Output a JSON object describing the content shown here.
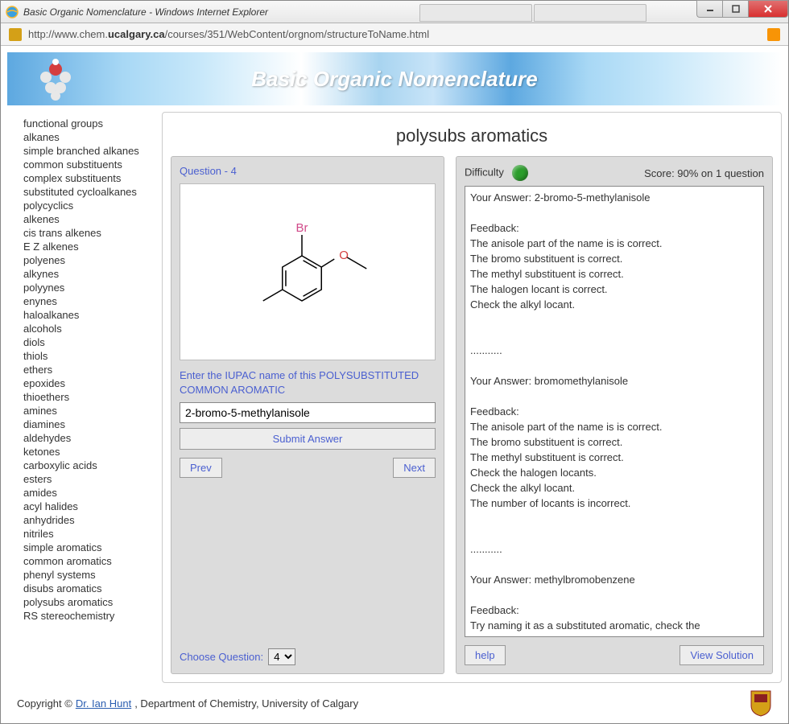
{
  "window": {
    "title": "Basic Organic Nomenclature - Windows Internet Explorer",
    "url_prefix": "http://www.chem.",
    "url_host": "ucalgary.ca",
    "url_path": "/courses/351/WebContent/orgnom/structureToName.html"
  },
  "banner": {
    "title": "Basic Organic Nomenclature"
  },
  "sidebar": {
    "items": [
      "functional groups",
      "alkanes",
      "simple branched alkanes",
      "common substituents",
      "complex substituents",
      "substituted cycloalkanes",
      "polycyclics",
      "alkenes",
      "cis trans alkenes",
      "E Z alkenes",
      "polyenes",
      "alkynes",
      "polyynes",
      "enynes",
      "haloalkanes",
      "alcohols",
      "diols",
      "thiols",
      "ethers",
      "epoxides",
      "thioethers",
      "amines",
      "diamines",
      "aldehydes",
      "ketones",
      "carboxylic acids",
      "esters",
      "amides",
      "acyl halides",
      "anhydrides",
      "nitriles",
      "simple aromatics",
      "common aromatics",
      "phenyl systems",
      "disubs aromatics",
      "polysubs aromatics",
      "RS stereochemistry"
    ]
  },
  "main": {
    "heading": "polysubs aromatics",
    "question_label": "Question - 4",
    "prompt": "Enter the IUPAC name of this POLYSUBSTITUTED COMMON AROMATIC",
    "answer_value": "2-bromo-5-methylanisole",
    "submit_label": "Submit Answer",
    "prev_label": "Prev",
    "next_label": "Next",
    "choose_label": "Choose Question:",
    "choose_value": "4",
    "difficulty_label": "Difficulty",
    "difficulty_color": "#2a9d2a",
    "score_text": "Score: 90% on 1 question",
    "help_label": "help",
    "view_solution_label": "View Solution",
    "feedback_text": "Your Answer: 2-bromo-5-methylanisole\n\nFeedback:\nThe anisole part of the name is is correct.\nThe bromo substituent is correct.\nThe methyl substituent is correct.\nThe halogen locant is correct.\nCheck the alkyl locant.\n\n\n...........\n\nYour Answer: bromomethylanisole\n\nFeedback:\nThe anisole part of the name is is correct.\nThe bromo substituent is correct.\nThe methyl substituent is correct.\nCheck the halogen locants.\nCheck the alkyl locant.\nThe number of locants is incorrect.\n\n\n...........\n\nYour Answer: methylbromobenzene\n\nFeedback:\nTry naming it as a substituted aromatic, check the"
  },
  "structure": {
    "br_label": "Br",
    "br_color": "#d14a8a",
    "o_label": "O",
    "o_color": "#d43f3f",
    "line_color": "#000000"
  },
  "footer": {
    "copyright_prefix": "Copyright ©  ",
    "author": "Dr. Ian Hunt",
    "suffix": ", Department of Chemistry, University of Calgary"
  }
}
